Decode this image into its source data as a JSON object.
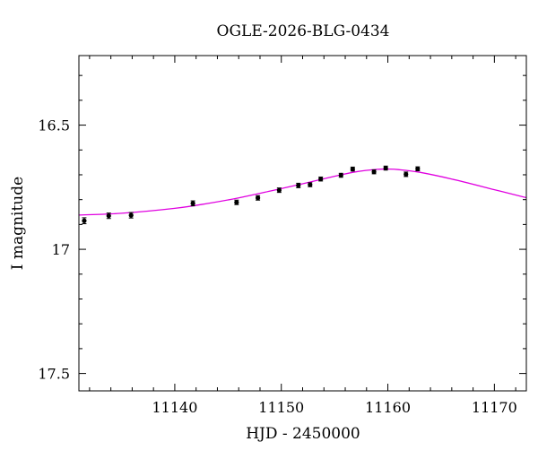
{
  "chart_data": {
    "type": "scatter",
    "title": "OGLE-2026-BLG-0434",
    "xlabel": "HJD - 2450000",
    "ylabel": "I magnitude",
    "xlim": [
      11131,
      11173
    ],
    "ylim": [
      17.57,
      16.22
    ],
    "y_inverted": true,
    "x_ticks": [
      11140,
      11150,
      11160,
      11170
    ],
    "x_tick_labels": [
      "11140",
      "11150",
      "11160",
      "11170"
    ],
    "y_ticks": [
      16.5,
      17,
      17.5
    ],
    "y_tick_labels": [
      "16.5",
      "17",
      "17.5"
    ],
    "grid": false,
    "series": [
      {
        "kind": "data",
        "marker": "filled-circle",
        "color": "#000000",
        "points": [
          {
            "x": 11131.5,
            "y": 16.885,
            "err": 0.012
          },
          {
            "x": 11133.8,
            "y": 16.865,
            "err": 0.011
          },
          {
            "x": 11135.9,
            "y": 16.863,
            "err": 0.011
          },
          {
            "x": 11141.7,
            "y": 16.815,
            "err": 0.01
          },
          {
            "x": 11145.8,
            "y": 16.811,
            "err": 0.009
          },
          {
            "x": 11147.8,
            "y": 16.793,
            "err": 0.009
          },
          {
            "x": 11149.8,
            "y": 16.762,
            "err": 0.009
          },
          {
            "x": 11151.6,
            "y": 16.743,
            "err": 0.009
          },
          {
            "x": 11152.7,
            "y": 16.74,
            "err": 0.008
          },
          {
            "x": 11153.7,
            "y": 16.717,
            "err": 0.008
          },
          {
            "x": 11155.6,
            "y": 16.702,
            "err": 0.008
          },
          {
            "x": 11156.7,
            "y": 16.677,
            "err": 0.008
          },
          {
            "x": 11158.7,
            "y": 16.688,
            "err": 0.008
          },
          {
            "x": 11159.8,
            "y": 16.673,
            "err": 0.008
          },
          {
            "x": 11161.7,
            "y": 16.698,
            "err": 0.009
          },
          {
            "x": 11162.8,
            "y": 16.676,
            "err": 0.008
          }
        ]
      },
      {
        "kind": "model",
        "color": "#e000e0",
        "x": [
          11131,
          11135,
          11140,
          11143,
          11146,
          11149,
          11152,
          11155,
          11157,
          11159,
          11160,
          11161,
          11163,
          11166,
          11170,
          11173
        ],
        "y": [
          16.862,
          16.855,
          16.835,
          16.816,
          16.793,
          16.765,
          16.736,
          16.706,
          16.688,
          16.678,
          16.677,
          16.679,
          16.69,
          16.717,
          16.76,
          16.792
        ]
      }
    ]
  }
}
